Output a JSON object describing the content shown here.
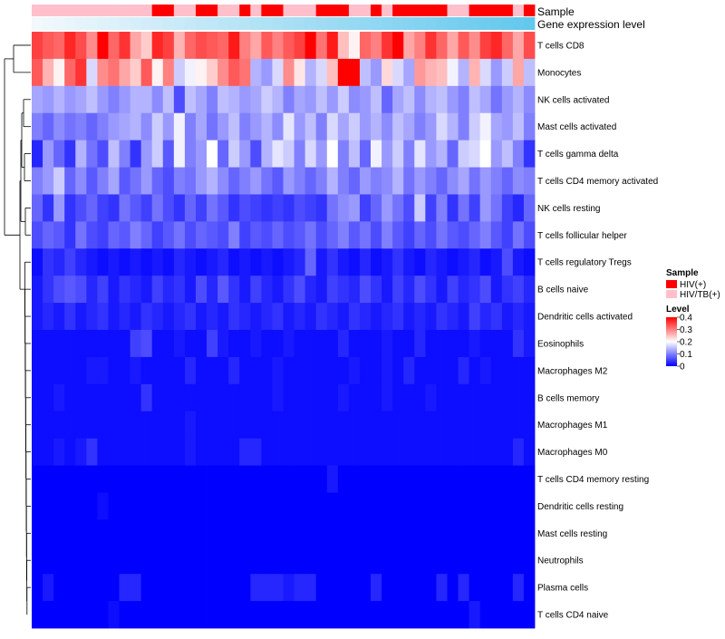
{
  "chart_data": {
    "type": "heatmap",
    "title": "",
    "annotation_tracks": [
      {
        "name": "Sample"
      },
      {
        "name": "Gene expression level"
      }
    ],
    "rows": [
      "T cells CD8",
      "Monocytes",
      "NK cells activated",
      "Mast cells activated",
      "T cells gamma delta",
      "T cells CD4 memory activated",
      "NK cells resting",
      "T cells follicular helper",
      "T cells regulatory  Tregs",
      "B cells naive",
      "Dendritic cells activated",
      "Eosinophils",
      "Macrophages M2",
      "B cells memory",
      "Macrophages M1",
      "Macrophages M0",
      "T cells CD4 memory resting",
      "Dendritic cells resting",
      "Mast cells resting",
      "Neutrophils",
      "Plasma cells",
      "T cells CD4 naive"
    ],
    "n_columns": 46,
    "sample_groups": [
      "HIV/TB(+)",
      "HIV/TB(+)",
      "HIV/TB(+)",
      "HIV/TB(+)",
      "HIV/TB(+)",
      "HIV/TB(+)",
      "HIV/TB(+)",
      "HIV/TB(+)",
      "HIV/TB(+)",
      "HIV/TB(+)",
      "HIV/TB(+)",
      "HIV(+)",
      "HIV(+)",
      "HIV/TB(+)",
      "HIV/TB(+)",
      "HIV(+)",
      "HIV(+)",
      "HIV/TB(+)",
      "HIV/TB(+)",
      "HIV(+)",
      "HIV/TB(+)",
      "HIV(+)",
      "HIV(+)",
      "HIV/TB(+)",
      "HIV/TB(+)",
      "HIV/TB(+)",
      "HIV(+)",
      "HIV(+)",
      "HIV(+)",
      "HIV/TB(+)",
      "HIV/TB(+)",
      "HIV(+)",
      "HIV/TB(+)",
      "HIV(+)",
      "HIV(+)",
      "HIV(+)",
      "HIV(+)",
      "HIV(+)",
      "HIV/TB(+)",
      "HIV/TB(+)",
      "HIV(+)",
      "HIV(+)",
      "HIV(+)",
      "HIV(+)",
      "HIV/TB(+)",
      "HIV(+)"
    ],
    "expression_gradient": {
      "start": "#f2f8fc",
      "end": "#63c8ed"
    },
    "values": [
      [
        0.35,
        0.33,
        0.32,
        0.37,
        0.34,
        0.29,
        0.42,
        0.32,
        0.36,
        0.27,
        0.24,
        0.37,
        0.35,
        0.26,
        0.32,
        0.34,
        0.33,
        0.32,
        0.38,
        0.3,
        0.27,
        0.33,
        0.3,
        0.33,
        0.35,
        0.41,
        0.31,
        0.38,
        0.25,
        0.21,
        0.32,
        0.3,
        0.36,
        0.41,
        0.27,
        0.3,
        0.36,
        0.32,
        0.27,
        0.33,
        0.29,
        0.35,
        0.37,
        0.32,
        0.27,
        0.34
      ],
      [
        0.33,
        0.26,
        0.21,
        0.32,
        0.36,
        0.17,
        0.29,
        0.31,
        0.27,
        0.24,
        0.33,
        0.21,
        0.3,
        0.16,
        0.19,
        0.21,
        0.24,
        0.29,
        0.33,
        0.31,
        0.14,
        0.12,
        0.17,
        0.29,
        0.22,
        0.14,
        0.17,
        0.25,
        0.44,
        0.41,
        0.15,
        0.12,
        0.23,
        0.17,
        0.13,
        0.28,
        0.26,
        0.25,
        0.19,
        0.14,
        0.26,
        0.17,
        0.12,
        0.16,
        0.27,
        0.15
      ],
      [
        0.13,
        0.12,
        0.14,
        0.12,
        0.13,
        0.15,
        0.12,
        0.1,
        0.12,
        0.14,
        0.14,
        0.11,
        0.15,
        0.06,
        0.15,
        0.13,
        0.1,
        0.15,
        0.14,
        0.12,
        0.13,
        0.16,
        0.14,
        0.1,
        0.13,
        0.12,
        0.15,
        0.12,
        0.16,
        0.11,
        0.12,
        0.15,
        0.08,
        0.13,
        0.15,
        0.11,
        0.14,
        0.15,
        0.12,
        0.1,
        0.15,
        0.13,
        0.09,
        0.12,
        0.14,
        0.11
      ],
      [
        0.1,
        0.08,
        0.11,
        0.09,
        0.1,
        0.08,
        0.1,
        0.12,
        0.13,
        0.14,
        0.11,
        0.16,
        0.12,
        0.19,
        0.1,
        0.13,
        0.09,
        0.12,
        0.15,
        0.1,
        0.12,
        0.14,
        0.11,
        0.18,
        0.12,
        0.15,
        0.1,
        0.17,
        0.13,
        0.16,
        0.12,
        0.14,
        0.11,
        0.15,
        0.13,
        0.1,
        0.12,
        0.17,
        0.14,
        0.1,
        0.16,
        0.19,
        0.13,
        0.12,
        0.15,
        0.1
      ],
      [
        0.03,
        0.12,
        0.08,
        0.04,
        0.14,
        0.09,
        0.06,
        0.15,
        0.1,
        0.04,
        0.12,
        0.16,
        0.07,
        0.19,
        0.1,
        0.12,
        0.2,
        0.08,
        0.16,
        0.12,
        0.06,
        0.14,
        0.18,
        0.16,
        0.1,
        0.17,
        0.12,
        0.2,
        0.1,
        0.15,
        0.08,
        0.19,
        0.12,
        0.16,
        0.1,
        0.18,
        0.12,
        0.14,
        0.08,
        0.16,
        0.17,
        0.2,
        0.12,
        0.15,
        0.1,
        0.04
      ],
      [
        0.1,
        0.12,
        0.16,
        0.08,
        0.11,
        0.07,
        0.1,
        0.13,
        0.07,
        0.09,
        0.12,
        0.08,
        0.06,
        0.1,
        0.09,
        0.12,
        0.14,
        0.11,
        0.08,
        0.1,
        0.12,
        0.09,
        0.07,
        0.12,
        0.1,
        0.08,
        0.1,
        0.14,
        0.1,
        0.08,
        0.12,
        0.1,
        0.11,
        0.14,
        0.09,
        0.12,
        0.1,
        0.08,
        0.11,
        0.13,
        0.09,
        0.12,
        0.1,
        0.08,
        0.11,
        0.1
      ],
      [
        0.08,
        0.04,
        0.12,
        0.04,
        0.06,
        0.08,
        0.05,
        0.04,
        0.09,
        0.07,
        0.05,
        0.09,
        0.06,
        0.04,
        0.08,
        0.05,
        0.09,
        0.07,
        0.04,
        0.06,
        0.05,
        0.04,
        0.05,
        0.04,
        0.06,
        0.05,
        0.04,
        0.09,
        0.11,
        0.12,
        0.05,
        0.08,
        0.12,
        0.09,
        0.06,
        0.16,
        0.05,
        0.1,
        0.04,
        0.09,
        0.05,
        0.12,
        0.09,
        0.05,
        0.03,
        0.08
      ],
      [
        0.06,
        0.08,
        0.07,
        0.04,
        0.09,
        0.06,
        0.05,
        0.08,
        0.07,
        0.1,
        0.08,
        0.05,
        0.07,
        0.09,
        0.06,
        0.08,
        0.07,
        0.06,
        0.1,
        0.05,
        0.07,
        0.06,
        0.08,
        0.06,
        0.07,
        0.09,
        0.06,
        0.08,
        0.1,
        0.07,
        0.09,
        0.06,
        0.1,
        0.07,
        0.05,
        0.08,
        0.06,
        0.09,
        0.07,
        0.06,
        0.08,
        0.1,
        0.07,
        0.05,
        0.09,
        0.06
      ],
      [
        0.01,
        0.04,
        0.03,
        0.05,
        0.03,
        0.02,
        0.01,
        0.02,
        0.01,
        0.02,
        0.01,
        0.02,
        0.01,
        0.03,
        0.02,
        0.01,
        0.02,
        0.03,
        0.01,
        0.02,
        0.01,
        0.02,
        0.01,
        0.02,
        0.03,
        0.08,
        0.02,
        0.04,
        0.02,
        0.01,
        0.03,
        0.01,
        0.02,
        0.04,
        0.02,
        0.01,
        0.03,
        0.02,
        0.01,
        0.02,
        0.03,
        0.01,
        0.02,
        0.06,
        0.02,
        0.01
      ],
      [
        0.02,
        0.04,
        0.06,
        0.07,
        0.06,
        0.03,
        0.05,
        0.02,
        0.04,
        0.03,
        0.02,
        0.05,
        0.03,
        0.04,
        0.02,
        0.06,
        0.03,
        0.07,
        0.04,
        0.02,
        0.05,
        0.03,
        0.02,
        0.04,
        0.06,
        0.03,
        0.02,
        0.05,
        0.04,
        0.03,
        0.06,
        0.04,
        0.02,
        0.05,
        0.03,
        0.06,
        0.04,
        0.02,
        0.05,
        0.03,
        0.04,
        0.06,
        0.02,
        0.04,
        0.05,
        0.03
      ],
      [
        0.02,
        0.03,
        0.02,
        0.04,
        0.02,
        0.03,
        0.04,
        0.02,
        0.03,
        0.02,
        0.04,
        0.03,
        0.02,
        0.03,
        0.04,
        0.02,
        0.03,
        0.02,
        0.04,
        0.03,
        0.02,
        0.03,
        0.04,
        0.02,
        0.03,
        0.02,
        0.04,
        0.03,
        0.02,
        0.04,
        0.03,
        0.02,
        0.03,
        0.04,
        0.02,
        0.03,
        0.02,
        0.04,
        0.03,
        0.02,
        0.05,
        0.03,
        0.04,
        0.02,
        0.03,
        0.02
      ],
      [
        0.01,
        0.01,
        0.01,
        0.01,
        0.01,
        0.01,
        0.01,
        0.01,
        0.01,
        0.05,
        0.06,
        0.01,
        0.01,
        0.02,
        0.01,
        0.01,
        0.05,
        0.02,
        0.01,
        0.01,
        0.02,
        0.01,
        0.01,
        0.02,
        0.01,
        0.01,
        0.01,
        0.01,
        0.03,
        0.01,
        0.01,
        0.01,
        0.02,
        0.01,
        0.01,
        0.03,
        0.01,
        0.01,
        0.01,
        0.01,
        0.02,
        0.01,
        0.01,
        0.01,
        0.04,
        0.02
      ],
      [
        0.01,
        0.01,
        0.01,
        0.01,
        0.01,
        0.02,
        0.02,
        0.01,
        0.01,
        0.02,
        0.01,
        0.01,
        0.01,
        0.01,
        0.03,
        0.01,
        0.01,
        0.01,
        0.03,
        0.01,
        0.01,
        0.01,
        0.02,
        0.01,
        0.01,
        0.01,
        0.01,
        0.01,
        0.01,
        0.02,
        0.01,
        0.01,
        0.02,
        0.01,
        0.03,
        0.01,
        0.01,
        0.01,
        0.01,
        0.03,
        0.01,
        0.02,
        0.01,
        0.01,
        0.01,
        0.01
      ],
      [
        0.01,
        0.01,
        0.02,
        0.01,
        0.01,
        0.01,
        0.01,
        0.01,
        0.01,
        0.01,
        0.04,
        0.01,
        0.01,
        0.01,
        0.01,
        0.01,
        0.01,
        0.01,
        0.01,
        0.01,
        0.01,
        0.01,
        0.02,
        0.01,
        0.01,
        0.01,
        0.01,
        0.01,
        0.02,
        0.01,
        0.01,
        0.01,
        0.02,
        0.01,
        0.01,
        0.01,
        0.02,
        0.01,
        0.01,
        0.01,
        0.01,
        0.01,
        0.01,
        0.01,
        0.01,
        0.01
      ],
      [
        0.01,
        0.01,
        0.01,
        0.01,
        0.01,
        0.01,
        0.01,
        0.01,
        0.01,
        0.01,
        0.01,
        0.01,
        0.01,
        0.01,
        0.02,
        0.01,
        0.01,
        0.01,
        0.01,
        0.01,
        0.01,
        0.01,
        0.01,
        0.01,
        0.01,
        0.01,
        0.01,
        0.01,
        0.01,
        0.01,
        0.01,
        0.01,
        0.01,
        0.01,
        0.01,
        0.01,
        0.01,
        0.01,
        0.01,
        0.01,
        0.01,
        0.01,
        0.01,
        0.01,
        0.01,
        0.01
      ],
      [
        0.01,
        0.01,
        0.02,
        0.01,
        0.02,
        0.04,
        0.01,
        0.01,
        0.01,
        0.01,
        0.01,
        0.01,
        0.01,
        0.01,
        0.02,
        0.01,
        0.01,
        0.01,
        0.01,
        0.03,
        0.03,
        0.01,
        0.01,
        0.01,
        0.01,
        0.01,
        0.01,
        0.01,
        0.01,
        0.01,
        0.01,
        0.01,
        0.01,
        0.01,
        0.01,
        0.01,
        0.01,
        0.01,
        0.01,
        0.01,
        0.01,
        0.01,
        0.01,
        0.01,
        0.03,
        0.01
      ],
      [
        0.0,
        0.0,
        0.0,
        0.0,
        0.0,
        0.0,
        0.0,
        0.0,
        0.0,
        0.0,
        0.0,
        0.0,
        0.0,
        0.0,
        0.0,
        0.0,
        0.0,
        0.0,
        0.0,
        0.0,
        0.0,
        0.0,
        0.0,
        0.0,
        0.0,
        0.0,
        0.0,
        0.02,
        0.0,
        0.0,
        0.0,
        0.0,
        0.0,
        0.0,
        0.0,
        0.0,
        0.0,
        0.0,
        0.0,
        0.0,
        0.0,
        0.0,
        0.0,
        0.0,
        0.0,
        0.0
      ],
      [
        0.0,
        0.0,
        0.0,
        0.0,
        0.0,
        0.0,
        0.01,
        0.0,
        0.0,
        0.0,
        0.0,
        0.0,
        0.0,
        0.0,
        0.0,
        0.0,
        0.0,
        0.0,
        0.0,
        0.0,
        0.0,
        0.0,
        0.0,
        0.0,
        0.0,
        0.0,
        0.0,
        0.0,
        0.0,
        0.0,
        0.0,
        0.0,
        0.0,
        0.0,
        0.0,
        0.0,
        0.0,
        0.0,
        0.0,
        0.0,
        0.0,
        0.0,
        0.0,
        0.0,
        0.0,
        0.0
      ],
      [
        0.0,
        0.0,
        0.0,
        0.0,
        0.0,
        0.0,
        0.0,
        0.0,
        0.0,
        0.0,
        0.0,
        0.0,
        0.0,
        0.0,
        0.0,
        0.0,
        0.0,
        0.0,
        0.0,
        0.0,
        0.0,
        0.0,
        0.0,
        0.0,
        0.0,
        0.0,
        0.0,
        0.0,
        0.0,
        0.0,
        0.0,
        0.0,
        0.0,
        0.0,
        0.0,
        0.0,
        0.0,
        0.0,
        0.0,
        0.0,
        0.0,
        0.0,
        0.0,
        0.0,
        0.0,
        0.0
      ],
      [
        0.0,
        0.0,
        0.0,
        0.0,
        0.0,
        0.0,
        0.0,
        0.0,
        0.0,
        0.0,
        0.0,
        0.0,
        0.0,
        0.0,
        0.0,
        0.0,
        0.0,
        0.0,
        0.0,
        0.0,
        0.0,
        0.0,
        0.0,
        0.0,
        0.0,
        0.0,
        0.0,
        0.0,
        0.0,
        0.0,
        0.0,
        0.0,
        0.0,
        0.0,
        0.0,
        0.0,
        0.0,
        0.0,
        0.0,
        0.0,
        0.0,
        0.0,
        0.0,
        0.0,
        0.0,
        0.0
      ],
      [
        0.0,
        0.02,
        0.0,
        0.0,
        0.0,
        0.0,
        0.0,
        0.0,
        0.03,
        0.03,
        0.0,
        0.0,
        0.0,
        0.0,
        0.0,
        0.0,
        0.0,
        0.0,
        0.0,
        0.0,
        0.03,
        0.03,
        0.03,
        0.02,
        0.03,
        0.03,
        0.0,
        0.0,
        0.0,
        0.0,
        0.0,
        0.03,
        0.0,
        0.0,
        0.0,
        0.0,
        0.0,
        0.03,
        0.0,
        0.03,
        0.0,
        0.0,
        0.0,
        0.0,
        0.03,
        0.0
      ],
      [
        0.0,
        0.0,
        0.0,
        0.0,
        0.0,
        0.0,
        0.0,
        0.01,
        0.0,
        0.0,
        0.0,
        0.0,
        0.0,
        0.0,
        0.0,
        0.0,
        0.0,
        0.0,
        0.0,
        0.0,
        0.0,
        0.0,
        0.0,
        0.0,
        0.0,
        0.0,
        0.0,
        0.0,
        0.0,
        0.0,
        0.0,
        0.0,
        0.0,
        0.0,
        0.0,
        0.0,
        0.0,
        0.0,
        0.0,
        0.0,
        0.02,
        0.0,
        0.0,
        0.0,
        0.0,
        0.0
      ]
    ],
    "color_scale": {
      "min": 0,
      "mid": 0.2,
      "max": 0.4,
      "low": "#0000ff",
      "midcolor": "#ffffff",
      "high": "#ff0000"
    },
    "legend": {
      "sample_title": "Sample",
      "sample_entries": [
        {
          "label": "HIV(+)",
          "color": "#ff0000"
        },
        {
          "label": "HIV/TB(+)",
          "color": "#ffc0cb"
        }
      ],
      "level_title": "Level",
      "level_ticks": [
        0.4,
        0.3,
        0.2,
        0.1,
        0
      ],
      "placement": "right"
    },
    "dendrogram": {
      "side": "left",
      "clusters": [
        "T cells CD8 + Monocytes",
        "remaining cell types"
      ]
    }
  }
}
